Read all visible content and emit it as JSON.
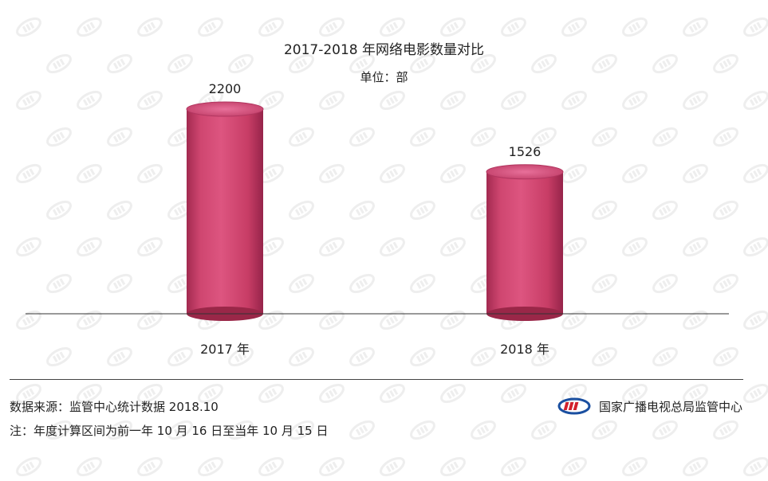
{
  "chart_data": {
    "type": "bar",
    "title": "2017-2018 年网络电影数量对比",
    "unit": "单位：部",
    "categories": [
      "2017 年",
      "2018 年"
    ],
    "values": [
      2200,
      1526
    ],
    "value_labels": [
      "2200",
      "1526"
    ],
    "ylim": [
      0,
      2500
    ],
    "grid": false,
    "legend": "none",
    "bar_color": "#d44a72"
  },
  "footer": {
    "source": "数据来源：监管中心统计数据 2018.10",
    "note": "注：年度计算区间为前一年 10 月 16 日至当年 10 月 15 日",
    "org_name": "国家广播电视总局监管中心",
    "logo_icon": "org-logo-icon",
    "logo_colors": [
      "#1a4fa0",
      "#d2202c"
    ]
  }
}
